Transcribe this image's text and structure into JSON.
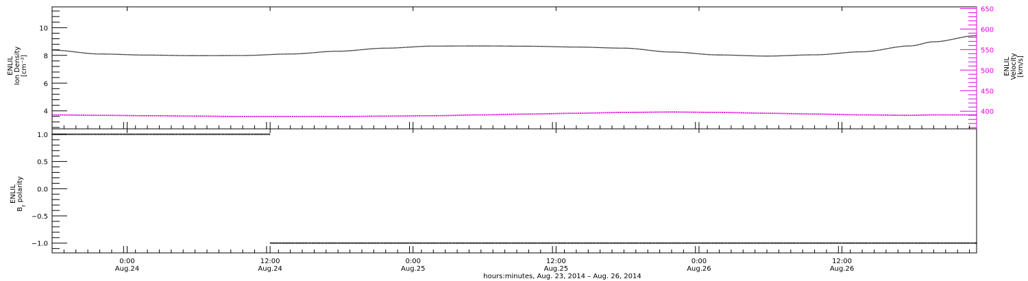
{
  "chart_data": [
    {
      "type": "line",
      "panel": "top",
      "left_axis": {
        "label_line1": "ENLIL",
        "label_line2": "Ion Density",
        "label_unit": "[cm⁻³]",
        "ylim": [
          2.7,
          11.5
        ],
        "tick_values": [
          4,
          6,
          8,
          10
        ],
        "tick_labels": [
          "4",
          "6",
          "8",
          "10"
        ]
      },
      "right_axis": {
        "label_line1": "ENLIL",
        "label_line2": "Velocity",
        "label_unit": "[km/s]",
        "ylim": [
          357,
          654
        ],
        "tick_values": [
          400,
          450,
          500,
          550,
          600,
          650
        ],
        "tick_labels": [
          "400",
          "450",
          "500",
          "550",
          "600",
          "650"
        ],
        "color": "#e000e0"
      },
      "x_hours": [
        0,
        4,
        8,
        12,
        16,
        20,
        24,
        28,
        32,
        36,
        40,
        44,
        48,
        52,
        56,
        60,
        64,
        68,
        72,
        74,
        77.6
      ],
      "series": [
        {
          "axis": "left",
          "color": "#000000",
          "values": [
            8.38,
            8.1,
            8.02,
            7.98,
            7.99,
            8.1,
            8.3,
            8.52,
            8.67,
            8.68,
            8.66,
            8.6,
            8.52,
            8.24,
            8.03,
            7.95,
            8.04,
            8.26,
            8.68,
            8.98,
            9.42
          ]
        },
        {
          "axis": "right",
          "color": "#e000e0",
          "values": [
            391,
            390,
            389,
            388,
            387,
            387,
            387,
            388,
            389,
            391,
            393,
            395,
            397,
            398,
            397,
            395,
            393,
            391,
            390,
            391,
            391
          ]
        }
      ]
    },
    {
      "type": "scatter",
      "panel": "bottom",
      "left_axis": {
        "label_line1": "ENLIL",
        "label_line2": "B",
        "label_sub": "r",
        "label_tail": " polarity",
        "ylim": [
          -1.18,
          1.1
        ],
        "tick_values": [
          -1.0,
          -0.5,
          0.0,
          0.5,
          1.0
        ],
        "tick_labels": [
          "−1.0",
          "−0.5",
          "0.0",
          "0.5",
          "1.0"
        ]
      },
      "segments": [
        {
          "x_start_hours": 0,
          "x_end_hours": 18.3,
          "value": 1.0
        },
        {
          "x_start_hours": 18.3,
          "x_end_hours": 77.6,
          "value": -1.0
        }
      ]
    }
  ],
  "x_axis": {
    "range_hours": [
      0,
      77.6
    ],
    "ticks": [
      {
        "hour": 6.3,
        "time": "0:00",
        "date": "Aug.24"
      },
      {
        "hour": 18.3,
        "time": "12:00",
        "date": "Aug.24"
      },
      {
        "hour": 30.3,
        "time": "0:00",
        "date": "Aug.25"
      },
      {
        "hour": 42.3,
        "time": "12:00",
        "date": "Aug.25"
      },
      {
        "hour": 54.3,
        "time": "0:00",
        "date": "Aug.26"
      },
      {
        "hour": 66.3,
        "time": "12:00",
        "date": "Aug.26"
      }
    ],
    "title": "hours:minutes, Aug. 23, 2014 – Aug. 26, 2014"
  }
}
